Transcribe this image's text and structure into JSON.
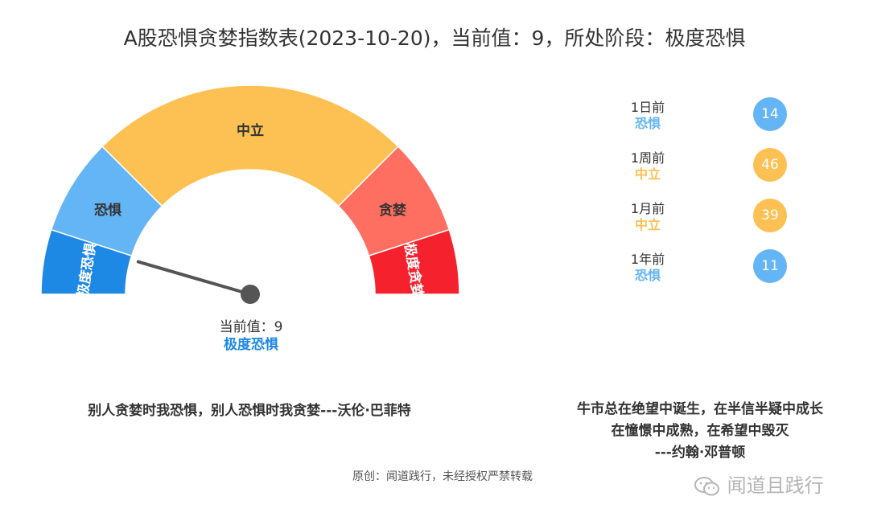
{
  "title": "A股恐惧贪婪指数表(2023-10-20)，当前值：9，所处阶段：极度恐惧",
  "chart_data": {
    "type": "gauge",
    "range": [
      0,
      100
    ],
    "value": 9,
    "bands": [
      {
        "label": "极度恐惧",
        "from": 0,
        "to": 10,
        "color": "#1e88e5"
      },
      {
        "label": "恐惧",
        "from": 10,
        "to": 25,
        "color": "#64b5f6"
      },
      {
        "label": "中立",
        "from": 25,
        "to": 75,
        "color": "#fcc152"
      },
      {
        "label": "贪婪",
        "from": 75,
        "to": 90,
        "color": "#ff6f61"
      },
      {
        "label": "极度贪婪",
        "from": 90,
        "to": 100,
        "color": "#f5222d"
      }
    ]
  },
  "current": {
    "value_text": "当前值：9",
    "phase": "极度恐惧"
  },
  "history": [
    {
      "when": "1日前",
      "phase": "恐惧",
      "value": "14",
      "color": "#64b5f6"
    },
    {
      "when": "1周前",
      "phase": "中立",
      "value": "46",
      "color": "#fcc152"
    },
    {
      "when": "1月前",
      "phase": "中立",
      "value": "39",
      "color": "#fcc152"
    },
    {
      "when": "1年前",
      "phase": "恐惧",
      "value": "11",
      "color": "#64b5f6"
    }
  ],
  "quote_left": "别人贪婪时我恐惧，别人恐惧时我贪婪---沃伦·巴菲特",
  "quote_right": {
    "line1": "牛市总在绝望中诞生，在半信半疑中成长",
    "line2": "在憧憬中成熟，在希望中毁灭",
    "line3": "---约翰·邓普顿"
  },
  "copyright": "原创：闻道践行，未经授权严禁转载",
  "watermark": "闻道且践行"
}
